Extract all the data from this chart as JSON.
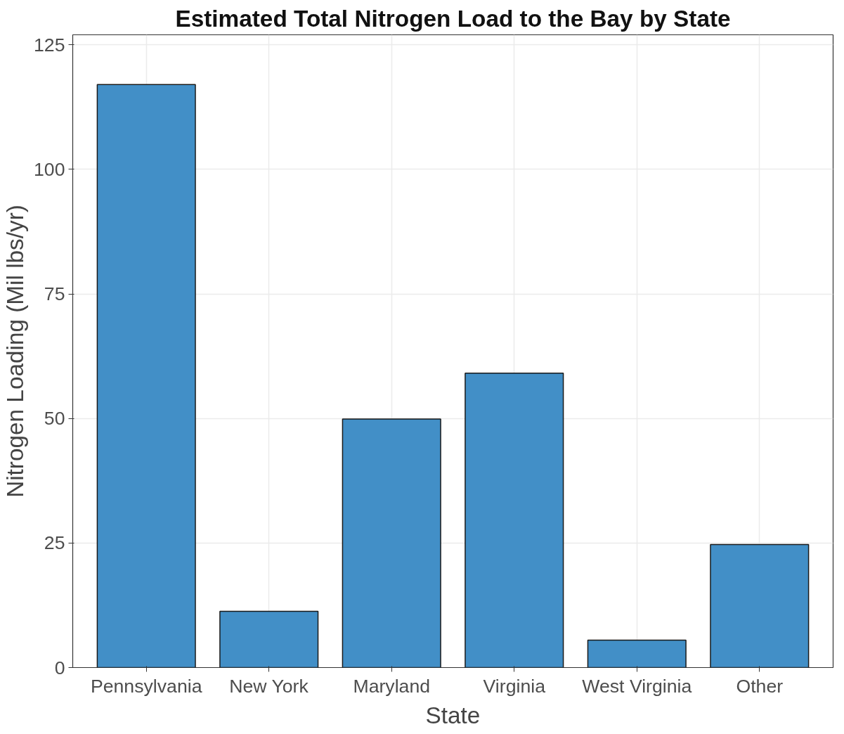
{
  "chart_data": {
    "type": "bar",
    "title": "Estimated Total Nitrogen Load to the Bay by State",
    "xlabel": "State",
    "ylabel": "Nitrogen Loading (Mil lbs/yr)",
    "categories": [
      "Pennsylvania",
      "New York",
      "Maryland",
      "Virginia",
      "West Virginia",
      "Other"
    ],
    "values": [
      117.0,
      11.3,
      49.9,
      59.1,
      5.5,
      24.7
    ],
    "color": "#428fc7",
    "ylim": [
      0,
      127
    ],
    "yticks": [
      0,
      25,
      50,
      75,
      100,
      125
    ],
    "grid": true
  }
}
